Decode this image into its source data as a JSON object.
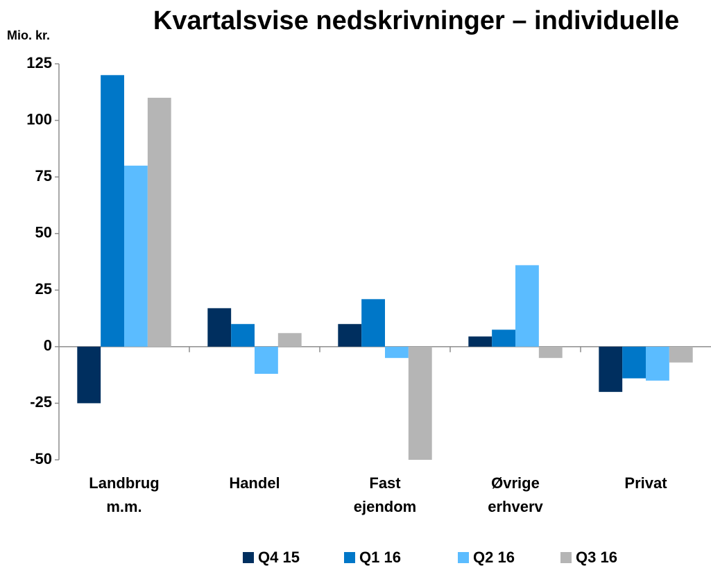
{
  "chart_data": {
    "type": "bar",
    "title": "Kvartalsvise nedskrivninger – individuelle",
    "y_label": "Mio. kr.",
    "categories": [
      "Landbrug m.m.",
      "Handel",
      "Fast ejendom",
      "Øvrige erhverv",
      "Privat"
    ],
    "series": [
      {
        "name": "Q4 15",
        "color": "#002f5f",
        "values": [
          -25,
          17,
          10,
          4.5,
          -20
        ]
      },
      {
        "name": "Q1 16",
        "color": "#0077c8",
        "values": [
          120,
          10,
          21,
          7.5,
          -14
        ]
      },
      {
        "name": "Q2 16",
        "color": "#5bbcff",
        "values": [
          80,
          -12,
          -5,
          36,
          -15
        ]
      },
      {
        "name": "Q3 16",
        "color": "#b5b5b5",
        "values": [
          110,
          6,
          -50,
          -5,
          -7
        ]
      }
    ],
    "ylim": [
      -50,
      125
    ],
    "yticks": [
      -50,
      -25,
      0,
      25,
      50,
      75,
      100,
      125
    ],
    "grid": false,
    "legend": "bottom"
  }
}
